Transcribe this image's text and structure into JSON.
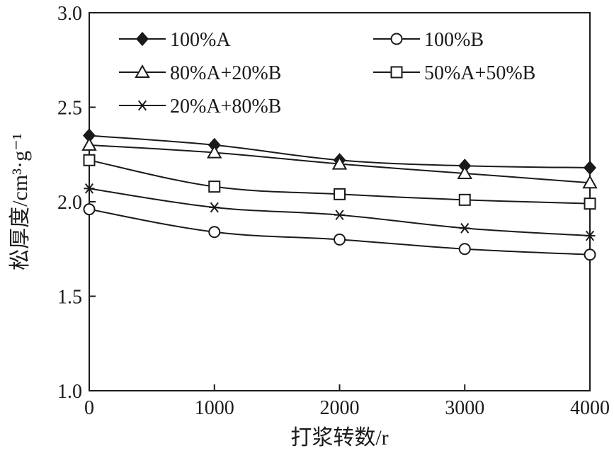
{
  "chart_data": {
    "type": "line",
    "xlabel": "打浆转数/r",
    "ylabel": "松厚度/cm³·g⁻¹",
    "xlim": [
      0,
      4000
    ],
    "ylim": [
      1.0,
      3.0
    ],
    "x_ticks": [
      "0",
      "1000",
      "2000",
      "3000",
      "4000"
    ],
    "y_ticks": [
      "1.0",
      "1.5",
      "2.0",
      "2.5",
      "3.0"
    ],
    "grid": false,
    "legend_position": "top-left",
    "x": [
      0,
      1000,
      2000,
      3000,
      4000
    ],
    "series": [
      {
        "name": "100%A",
        "marker": "diamond-filled",
        "values": [
          2.35,
          2.3,
          2.22,
          2.19,
          2.18
        ]
      },
      {
        "name": "100%B",
        "marker": "circle-open",
        "values": [
          1.96,
          1.84,
          1.8,
          1.75,
          1.72
        ]
      },
      {
        "name": "80%A+20%B",
        "marker": "triangle-open",
        "values": [
          2.3,
          2.26,
          2.2,
          2.15,
          2.1
        ]
      },
      {
        "name": "50%A+50%B",
        "marker": "square-open",
        "values": [
          2.22,
          2.08,
          2.04,
          2.01,
          1.99
        ]
      },
      {
        "name": "20%A+80%B",
        "marker": "asterisk",
        "values": [
          2.07,
          1.97,
          1.93,
          1.86,
          1.82
        ]
      }
    ]
  }
}
